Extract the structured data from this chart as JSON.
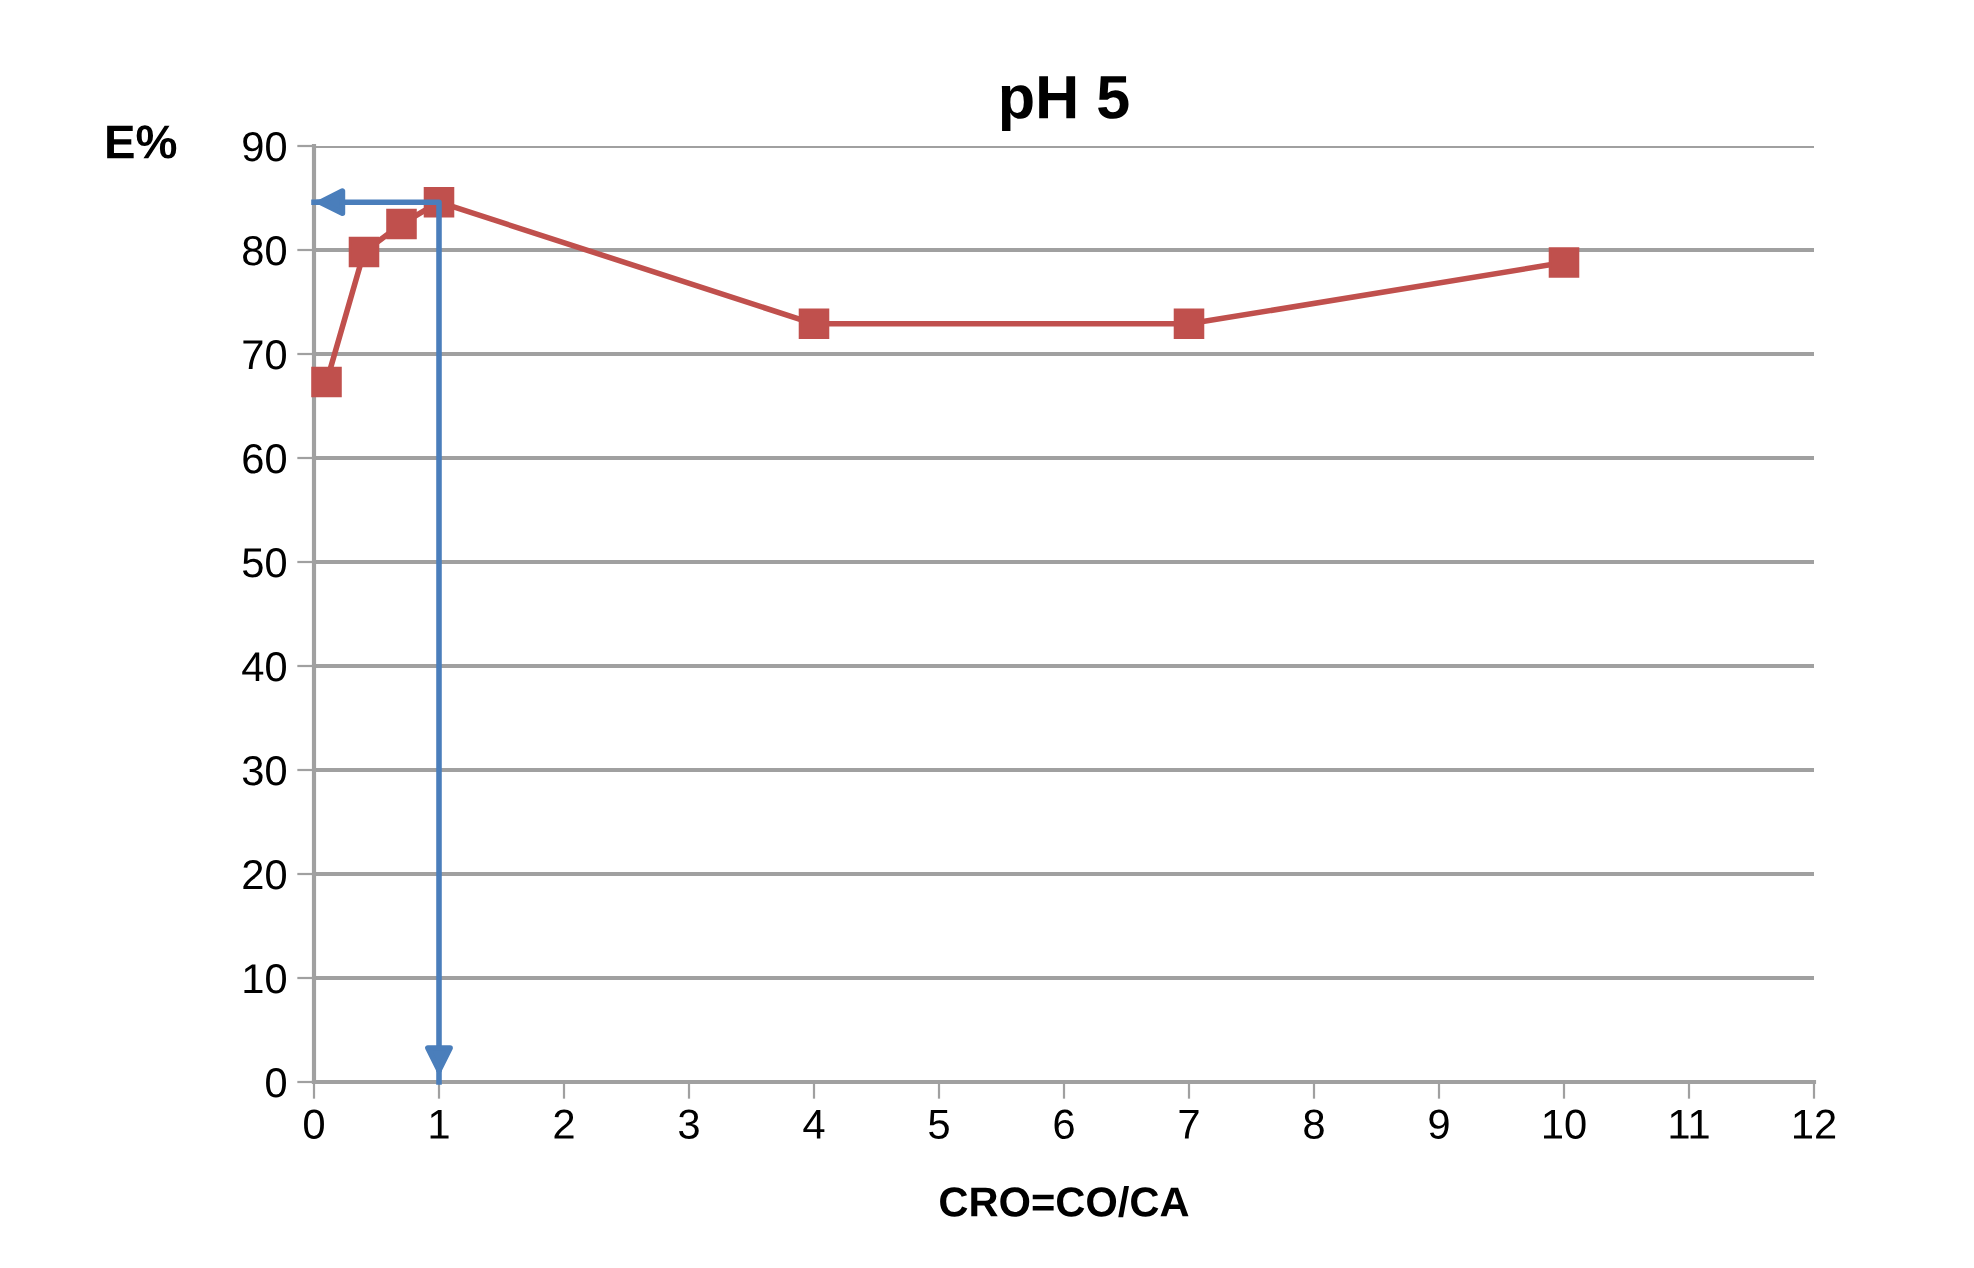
{
  "chart_data": {
    "type": "line",
    "title": "pH 5",
    "xlabel": "CRO=CO/CA",
    "ylabel": "E%",
    "xlim": [
      0,
      12
    ],
    "xticks": [
      0,
      1,
      2,
      3,
      4,
      5,
      6,
      7,
      8,
      9,
      10,
      11,
      12
    ],
    "ylim": [
      0,
      90
    ],
    "yticks": [
      0,
      10,
      20,
      30,
      40,
      50,
      60,
      70,
      80,
      90
    ],
    "grid": "y",
    "legend": false,
    "marker": "square",
    "line_style": "solid",
    "series": [
      {
        "color": "#c0504d",
        "x": [
          0.1,
          0.4,
          0.7,
          1,
          4,
          7,
          10
        ],
        "values": [
          67.3,
          79.8,
          82.5,
          84.6,
          72.9,
          72.9,
          78.8
        ]
      },
      {
        "color": "#4a7ebb",
        "x": [
          0,
          1,
          1
        ],
        "values": [
          84.6,
          84.6,
          0
        ],
        "marker": "none"
      }
    ]
  }
}
